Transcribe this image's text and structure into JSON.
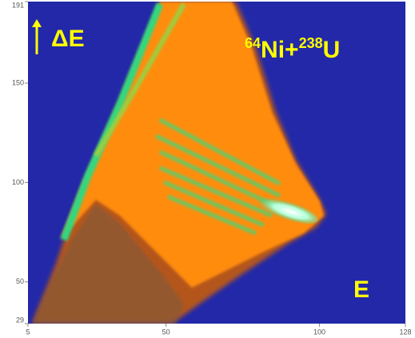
{
  "chart_data": {
    "type": "histogram2d",
    "annotations": {
      "delta_e": "ΔE",
      "energy": "E",
      "reaction": {
        "mass1": "64",
        "part1": "Ni+",
        "mass2": "238",
        "part2": "U"
      }
    },
    "xlim": [
      5,
      128
    ],
    "xticks": [
      5,
      50,
      100,
      128
    ],
    "ylim": [
      29,
      191
    ],
    "yticks": [
      29,
      50,
      100,
      150,
      191
    ],
    "background": "#2228a8"
  }
}
